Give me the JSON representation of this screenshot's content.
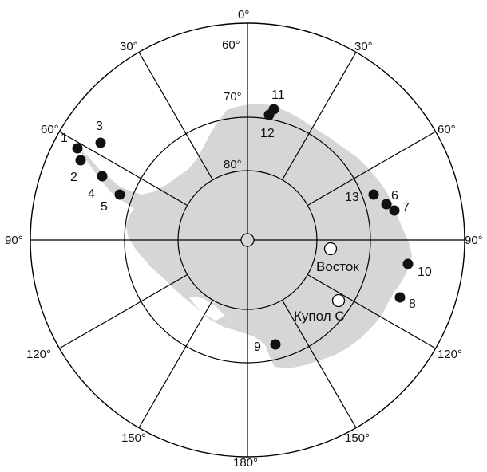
{
  "colors": {
    "land": "#d6d6d6",
    "grid": "#000000",
    "marker_filled": "#111111",
    "marker_open": "#ffffff",
    "text": "#111111"
  },
  "graticule": {
    "meridian_labels": {
      "top": "0°",
      "top_left_60": "60°",
      "top_right_30": "30°",
      "top_left_30": "30°",
      "right_60": "60°",
      "left_60": "60°",
      "right_90": "90°",
      "left_90": "90°",
      "right_120": "120°",
      "left_120": "120°",
      "right_150": "150°",
      "left_150": "150°",
      "bottom": "180°"
    },
    "parallel_labels": {
      "lat70": "70°",
      "lat80": "80°"
    }
  },
  "stations": [
    {
      "label": "1",
      "type": "filled"
    },
    {
      "label": "2",
      "type": "filled"
    },
    {
      "label": "3",
      "type": "filled"
    },
    {
      "label": "4",
      "type": "filled"
    },
    {
      "label": "5",
      "type": "filled"
    },
    {
      "label": "6",
      "type": "filled"
    },
    {
      "label": "7",
      "type": "filled"
    },
    {
      "label": "8",
      "type": "filled"
    },
    {
      "label": "9",
      "type": "filled"
    },
    {
      "label": "10",
      "type": "filled"
    },
    {
      "label": "11",
      "type": "filled"
    },
    {
      "label": "12",
      "type": "filled"
    },
    {
      "label": "13",
      "type": "filled"
    },
    {
      "label": "Восток",
      "type": "open"
    },
    {
      "label": "Купол С",
      "type": "open"
    }
  ]
}
